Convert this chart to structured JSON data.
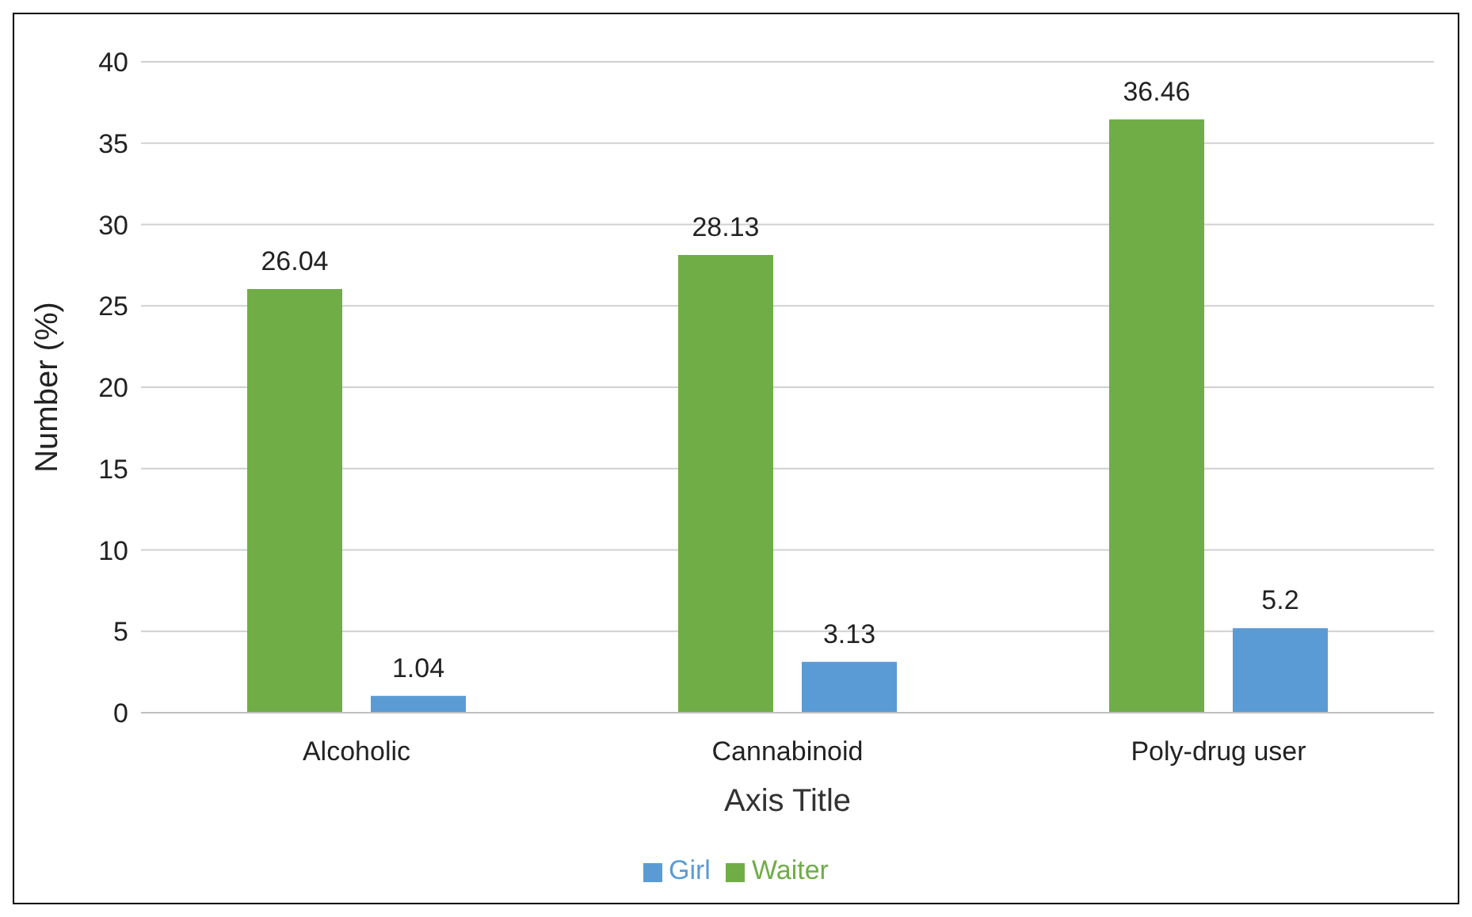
{
  "chart_data": {
    "type": "bar",
    "xlabel": "Axis Title",
    "ylabel": "Number (%)",
    "categories": [
      "Alcoholic",
      "Cannabinoid",
      "Poly-drug user"
    ],
    "series": [
      {
        "name": "Waiter",
        "color": "#70ad47",
        "values": [
          26.04,
          28.13,
          36.46
        ]
      },
      {
        "name": "Girl",
        "color": "#5b9bd5",
        "values": [
          1.04,
          3.13,
          5.2
        ]
      }
    ],
    "ylim": [
      0,
      40
    ],
    "yticks": [
      0,
      5,
      10,
      15,
      20,
      25,
      30,
      35,
      40
    ],
    "grid": "y",
    "legend": "bottom",
    "data_labels": true
  }
}
